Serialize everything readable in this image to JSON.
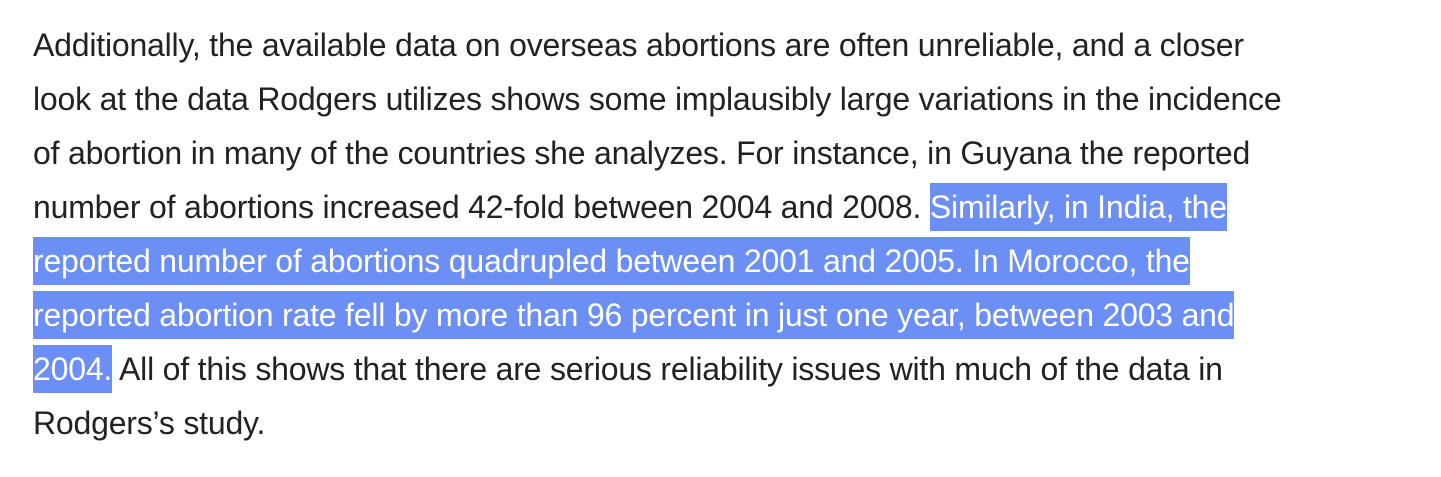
{
  "article": {
    "paragraph": {
      "line1": "Additionally, the available data on overseas abortions are often unreliable, and a closer",
      "line2": "look at the data Rodgers utilizes shows some implausibly large variations in the incidence",
      "line3": "of abortion in many of the countries she analyzes.  For instance, in Guyana the reported",
      "line4_plain": "number of abortions increased 42-fold between 2004 and 2008. ",
      "line4_selected": "Similarly, in India, the",
      "line5_selected": "reported number of abortions quadrupled between 2001 and 2005. In Morocco, the",
      "line6_selected": "reported abortion rate fell by more than 96 percent in just one year, between 2003 and",
      "line7_selected": "2004.",
      "line7_plain": " All of this shows that there are serious reliability issues with much of the data in",
      "line8": "Rodgers’s study."
    },
    "selection_color": "#6b8ff5",
    "text_color": "#222222"
  }
}
